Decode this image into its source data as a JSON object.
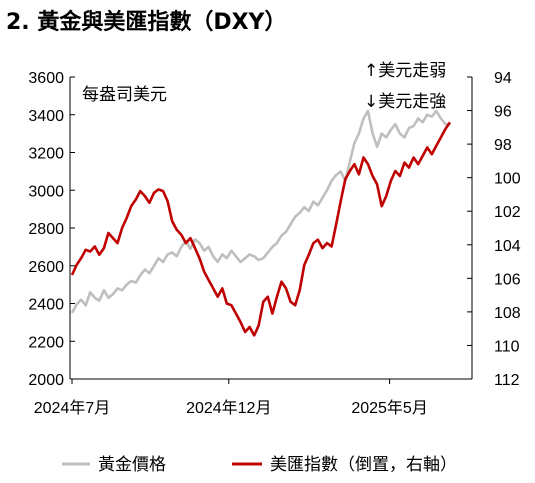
{
  "chart_data": {
    "type": "line",
    "title": "2. 黃金與美匯指數（DXY）",
    "left_axis_note": "每盎司美元",
    "right_axis_note_up": "↑美元走弱",
    "right_axis_note_down": "↓美元走強",
    "x_labels": [
      "2024年7月",
      "2024年12月",
      "2025年5月"
    ],
    "left_axis": {
      "min": 2000,
      "max": 3600,
      "ticks": [
        "2000",
        "2200",
        "2400",
        "2600",
        "2800",
        "3000",
        "3200",
        "3400",
        "3600"
      ]
    },
    "right_axis": {
      "min": 94,
      "max": 112,
      "inverted": true,
      "ticks": [
        "94",
        "96",
        "98",
        "100",
        "102",
        "104",
        "106",
        "108",
        "110",
        "112"
      ]
    },
    "legend": [
      "黃金價格",
      "美匯指數（倒置，右軸）"
    ],
    "colors": {
      "gold": "#bfbfbf",
      "dxy": "#c00000",
      "axis": "#000000"
    },
    "series": [
      {
        "name": "黃金價格",
        "axis": "left",
        "values": [
          2350,
          2395,
          2420,
          2390,
          2460,
          2430,
          2415,
          2470,
          2430,
          2450,
          2480,
          2470,
          2500,
          2520,
          2510,
          2550,
          2580,
          2560,
          2600,
          2640,
          2620,
          2660,
          2670,
          2650,
          2700,
          2730,
          2690,
          2740,
          2720,
          2680,
          2700,
          2650,
          2620,
          2660,
          2640,
          2680,
          2650,
          2620,
          2640,
          2660,
          2650,
          2630,
          2640,
          2670,
          2700,
          2720,
          2760,
          2780,
          2820,
          2860,
          2880,
          2910,
          2890,
          2940,
          2920,
          2960,
          3000,
          3050,
          3080,
          3100,
          3050,
          3150,
          3250,
          3300,
          3380,
          3420,
          3300,
          3230,
          3300,
          3280,
          3320,
          3350,
          3300,
          3280,
          3330,
          3340,
          3380,
          3360,
          3400,
          3390,
          3420,
          3380,
          3350,
          3350
        ]
      },
      {
        "name": "美匯指數（倒置，右軸）",
        "axis": "right",
        "values": [
          105.8,
          105.2,
          104.8,
          104.3,
          104.4,
          104.1,
          104.6,
          104.2,
          103.3,
          103.6,
          103.9,
          103.0,
          102.4,
          101.7,
          101.3,
          100.8,
          101.1,
          101.5,
          100.9,
          100.7,
          100.8,
          101.4,
          102.6,
          103.1,
          103.4,
          103.9,
          103.6,
          104.2,
          104.8,
          105.6,
          106.1,
          106.6,
          107.1,
          106.6,
          107.5,
          107.6,
          108.1,
          108.6,
          109.2,
          108.9,
          109.4,
          108.8,
          107.4,
          107.1,
          108.1,
          107.1,
          106.2,
          106.6,
          107.4,
          107.6,
          106.7,
          105.2,
          104.6,
          103.9,
          103.7,
          104.2,
          103.9,
          104.1,
          102.8,
          101.4,
          100.1,
          99.6,
          99.2,
          99.8,
          98.8,
          99.2,
          99.9,
          100.4,
          101.7,
          101.1,
          100.2,
          99.6,
          99.9,
          99.1,
          99.4,
          98.8,
          99.2,
          98.7,
          98.2,
          98.6,
          98.1,
          97.6,
          97.1,
          96.7
        ]
      }
    ]
  }
}
